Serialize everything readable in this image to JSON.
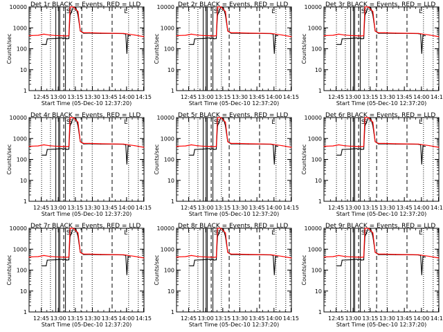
{
  "ylabel": "Counts/sec",
  "xlabel": "Start Time (05-Dec-10 12:37:20)",
  "x_ticks": [
    "12:45",
    "13:00",
    "13:15",
    "13:30",
    "13:45",
    "14:00",
    "14:15"
  ],
  "y_ticks": [
    "1",
    "10",
    "100",
    "1000",
    "10000"
  ],
  "colors": {
    "events": "#000000",
    "lld": "#ff0000",
    "frame": "#000000",
    "background": "#ffffff"
  },
  "chart_data": [
    {
      "type": "line",
      "title": "Det 1r BLACK = Events, RED = LLD",
      "ylim": [
        1,
        10000
      ],
      "yscale": "log",
      "xlim_minutes": [
        -3,
        98
      ],
      "series": [
        {
          "name": "Events",
          "x": [
            8,
            12,
            13,
            20,
            23,
            26,
            27,
            29,
            30,
            32,
            33,
            36,
            38,
            40,
            42,
            45,
            50,
            60,
            70,
            80,
            82,
            83,
            84,
            86
          ],
          "y": [
            160,
            160,
            300,
            310,
            320,
            330,
            300,
            330,
            300,
            310,
            4000,
            10000,
            10000,
            4000,
            700,
            550,
            560,
            540,
            540,
            530,
            500,
            60,
            450,
            420
          ]
        },
        {
          "name": "LLD",
          "x": [
            -3,
            0,
            5,
            10,
            15,
            20,
            25,
            30,
            32,
            33,
            34,
            36,
            40,
            42,
            45,
            50,
            60,
            70,
            80,
            90,
            98
          ],
          "y": [
            420,
            430,
            440,
            500,
            450,
            430,
            420,
            410,
            420,
            10000,
            10000,
            10000,
            6000,
            700,
            580,
            580,
            560,
            550,
            540,
            450,
            380
          ]
        }
      ]
    },
    {
      "type": "line",
      "title": "Det 2r BLACK = Events, RED = LLD",
      "ylim": [
        1,
        10000
      ],
      "yscale": "log",
      "xlim_minutes": [
        -3,
        98
      ],
      "series": [
        {
          "name": "Events",
          "x": [
            8,
            12,
            13,
            20,
            23,
            26,
            27,
            29,
            30,
            32,
            33,
            36,
            38,
            40,
            42,
            45,
            50,
            60,
            70,
            80,
            82,
            83,
            84,
            86
          ],
          "y": [
            160,
            160,
            300,
            310,
            320,
            330,
            300,
            330,
            300,
            310,
            4000,
            10000,
            10000,
            4000,
            700,
            550,
            560,
            540,
            540,
            530,
            500,
            60,
            450,
            420
          ]
        },
        {
          "name": "LLD",
          "x": [
            -3,
            0,
            5,
            10,
            15,
            20,
            25,
            30,
            32,
            33,
            34,
            36,
            40,
            42,
            45,
            50,
            60,
            70,
            80,
            90,
            98
          ],
          "y": [
            420,
            430,
            440,
            500,
            450,
            430,
            420,
            410,
            420,
            10000,
            10000,
            10000,
            6000,
            700,
            580,
            580,
            560,
            550,
            540,
            450,
            380
          ]
        }
      ]
    },
    {
      "type": "line",
      "title": "Det 3r BLACK = Events, RED = LLD",
      "ylim": [
        1,
        10000
      ],
      "yscale": "log",
      "xlim_minutes": [
        -3,
        98
      ],
      "series": [
        {
          "name": "Events",
          "x": [
            8,
            12,
            13,
            20,
            23,
            26,
            27,
            29,
            30,
            32,
            33,
            36,
            38,
            40,
            42,
            45,
            50,
            60,
            70,
            80,
            82,
            83,
            84,
            86
          ],
          "y": [
            160,
            160,
            300,
            310,
            320,
            330,
            300,
            330,
            300,
            310,
            4000,
            10000,
            10000,
            4000,
            700,
            550,
            560,
            540,
            540,
            530,
            500,
            60,
            450,
            420
          ]
        },
        {
          "name": "LLD",
          "x": [
            -3,
            0,
            5,
            10,
            15,
            20,
            25,
            30,
            32,
            33,
            34,
            36,
            40,
            42,
            45,
            50,
            60,
            70,
            80,
            90,
            98
          ],
          "y": [
            420,
            430,
            440,
            500,
            450,
            430,
            420,
            410,
            420,
            10000,
            10000,
            10000,
            6000,
            700,
            580,
            580,
            560,
            550,
            540,
            450,
            380
          ]
        }
      ]
    },
    {
      "type": "line",
      "title": "Det 4r BLACK = Events, RED = LLD",
      "ylim": [
        1,
        10000
      ],
      "yscale": "log",
      "xlim_minutes": [
        -3,
        98
      ],
      "series": [
        {
          "name": "Events",
          "x": [
            8,
            12,
            13,
            20,
            23,
            26,
            27,
            29,
            30,
            32,
            33,
            36,
            38,
            40,
            42,
            45,
            50,
            60,
            70,
            80,
            82,
            83,
            84,
            86
          ],
          "y": [
            160,
            160,
            300,
            310,
            320,
            330,
            300,
            330,
            300,
            310,
            4000,
            10000,
            10000,
            4000,
            700,
            550,
            560,
            540,
            540,
            530,
            500,
            60,
            450,
            420
          ]
        },
        {
          "name": "LLD",
          "x": [
            -3,
            0,
            5,
            10,
            15,
            20,
            25,
            30,
            32,
            33,
            34,
            36,
            40,
            42,
            45,
            50,
            60,
            70,
            80,
            90,
            98
          ],
          "y": [
            420,
            430,
            440,
            500,
            450,
            430,
            420,
            410,
            420,
            10000,
            10000,
            10000,
            6000,
            700,
            580,
            580,
            560,
            550,
            540,
            450,
            380
          ]
        }
      ]
    },
    {
      "type": "line",
      "title": "Det 5r BLACK = Events, RED = LLD",
      "ylim": [
        1,
        10000
      ],
      "yscale": "log",
      "xlim_minutes": [
        -3,
        98
      ],
      "series": [
        {
          "name": "Events",
          "x": [
            8,
            12,
            13,
            20,
            23,
            26,
            27,
            29,
            30,
            32,
            33,
            36,
            38,
            40,
            42,
            45,
            50,
            60,
            70,
            80,
            82,
            83,
            84,
            86
          ],
          "y": [
            160,
            160,
            300,
            310,
            320,
            330,
            300,
            330,
            300,
            310,
            4000,
            10000,
            10000,
            4000,
            700,
            550,
            560,
            540,
            540,
            530,
            500,
            60,
            450,
            420
          ]
        },
        {
          "name": "LLD",
          "x": [
            -3,
            0,
            5,
            10,
            15,
            20,
            25,
            30,
            32,
            33,
            34,
            36,
            40,
            42,
            45,
            50,
            60,
            70,
            80,
            90,
            98
          ],
          "y": [
            420,
            430,
            440,
            500,
            450,
            430,
            420,
            410,
            420,
            10000,
            10000,
            10000,
            6000,
            700,
            580,
            580,
            560,
            550,
            540,
            450,
            380
          ]
        }
      ]
    },
    {
      "type": "line",
      "title": "Det 6r BLACK = Events, RED = LLD",
      "ylim": [
        1,
        10000
      ],
      "yscale": "log",
      "xlim_minutes": [
        -3,
        98
      ],
      "series": [
        {
          "name": "Events",
          "x": [
            8,
            12,
            13,
            20,
            23,
            26,
            27,
            29,
            30,
            32,
            33,
            36,
            38,
            40,
            42,
            45,
            50,
            60,
            70,
            80,
            82,
            83,
            84,
            86
          ],
          "y": [
            160,
            160,
            300,
            310,
            320,
            330,
            300,
            330,
            300,
            310,
            4000,
            10000,
            10000,
            4000,
            700,
            550,
            560,
            540,
            540,
            530,
            500,
            60,
            450,
            420
          ]
        },
        {
          "name": "LLD",
          "x": [
            -3,
            0,
            5,
            10,
            15,
            20,
            25,
            30,
            32,
            33,
            34,
            36,
            40,
            42,
            45,
            50,
            60,
            70,
            80,
            90,
            98
          ],
          "y": [
            420,
            430,
            440,
            500,
            450,
            430,
            420,
            410,
            420,
            10000,
            10000,
            10000,
            6000,
            700,
            580,
            580,
            560,
            550,
            540,
            450,
            380
          ]
        }
      ]
    },
    {
      "type": "line",
      "title": "Det 7r BLACK = Events, RED = LLD",
      "ylim": [
        1,
        10000
      ],
      "yscale": "log",
      "xlim_minutes": [
        -3,
        98
      ],
      "series": [
        {
          "name": "Events",
          "x": [
            8,
            12,
            13,
            20,
            23,
            26,
            27,
            29,
            30,
            32,
            33,
            36,
            38,
            40,
            42,
            45,
            50,
            60,
            70,
            80,
            82,
            83,
            84,
            86
          ],
          "y": [
            160,
            160,
            300,
            310,
            320,
            330,
            300,
            330,
            300,
            310,
            4000,
            10000,
            10000,
            4000,
            700,
            550,
            560,
            540,
            540,
            530,
            500,
            60,
            450,
            420
          ]
        },
        {
          "name": "LLD",
          "x": [
            -3,
            0,
            5,
            10,
            15,
            20,
            25,
            30,
            32,
            33,
            34,
            36,
            40,
            42,
            45,
            50,
            60,
            70,
            80,
            90,
            98
          ],
          "y": [
            420,
            430,
            440,
            500,
            450,
            430,
            420,
            410,
            420,
            10000,
            10000,
            10000,
            6000,
            700,
            580,
            580,
            560,
            550,
            540,
            450,
            380
          ]
        }
      ]
    },
    {
      "type": "line",
      "title": "Det 8r BLACK = Events, RED = LLD",
      "ylim": [
        1,
        10000
      ],
      "yscale": "log",
      "xlim_minutes": [
        -3,
        98
      ],
      "series": [
        {
          "name": "Events",
          "x": [
            8,
            12,
            13,
            20,
            23,
            26,
            27,
            29,
            30,
            32,
            33,
            36,
            38,
            40,
            42,
            45,
            50,
            60,
            70,
            80,
            82,
            83,
            84,
            86
          ],
          "y": [
            160,
            160,
            300,
            310,
            320,
            330,
            300,
            330,
            300,
            310,
            4000,
            10000,
            10000,
            4000,
            700,
            550,
            560,
            540,
            540,
            530,
            500,
            60,
            450,
            420
          ]
        },
        {
          "name": "LLD",
          "x": [
            -3,
            0,
            5,
            10,
            15,
            20,
            25,
            30,
            32,
            33,
            34,
            36,
            40,
            42,
            45,
            50,
            60,
            70,
            80,
            90,
            98
          ],
          "y": [
            420,
            430,
            440,
            500,
            450,
            430,
            420,
            410,
            420,
            10000,
            10000,
            10000,
            6000,
            700,
            580,
            580,
            560,
            550,
            540,
            450,
            380
          ]
        }
      ]
    },
    {
      "type": "line",
      "title": "Det 9r BLACK = Events, RED = LLD",
      "ylim": [
        1,
        10000
      ],
      "yscale": "log",
      "xlim_minutes": [
        -3,
        98
      ],
      "series": [
        {
          "name": "Events",
          "x": [
            8,
            12,
            13,
            20,
            23,
            26,
            27,
            29,
            30,
            32,
            33,
            36,
            38,
            40,
            42,
            45,
            50,
            60,
            70,
            80,
            82,
            83,
            84,
            86
          ],
          "y": [
            160,
            160,
            300,
            310,
            320,
            330,
            300,
            330,
            300,
            310,
            4000,
            10000,
            10000,
            4000,
            700,
            550,
            560,
            540,
            540,
            530,
            500,
            60,
            450,
            420
          ]
        },
        {
          "name": "LLD",
          "x": [
            -3,
            0,
            5,
            10,
            15,
            20,
            25,
            30,
            32,
            33,
            34,
            36,
            40,
            42,
            45,
            50,
            60,
            70,
            80,
            90,
            98
          ],
          "y": [
            420,
            430,
            440,
            500,
            450,
            430,
            420,
            410,
            420,
            10000,
            10000,
            10000,
            6000,
            700,
            580,
            580,
            560,
            550,
            540,
            450,
            380
          ]
        }
      ]
    }
  ],
  "markers": {
    "flag_labels": [
      "S",
      "S",
      "L"
    ],
    "flag_times_minutes": [
      31.5,
      33.5,
      82
    ],
    "solid_times_minutes": [
      20.5,
      23,
      24,
      29
    ],
    "dashed_times_minutes": [
      27.5,
      43.3,
      70
    ],
    "dotted_times_minutes": [
      8,
      15.8,
      36.5,
      52.5,
      84.5,
      93
    ]
  }
}
